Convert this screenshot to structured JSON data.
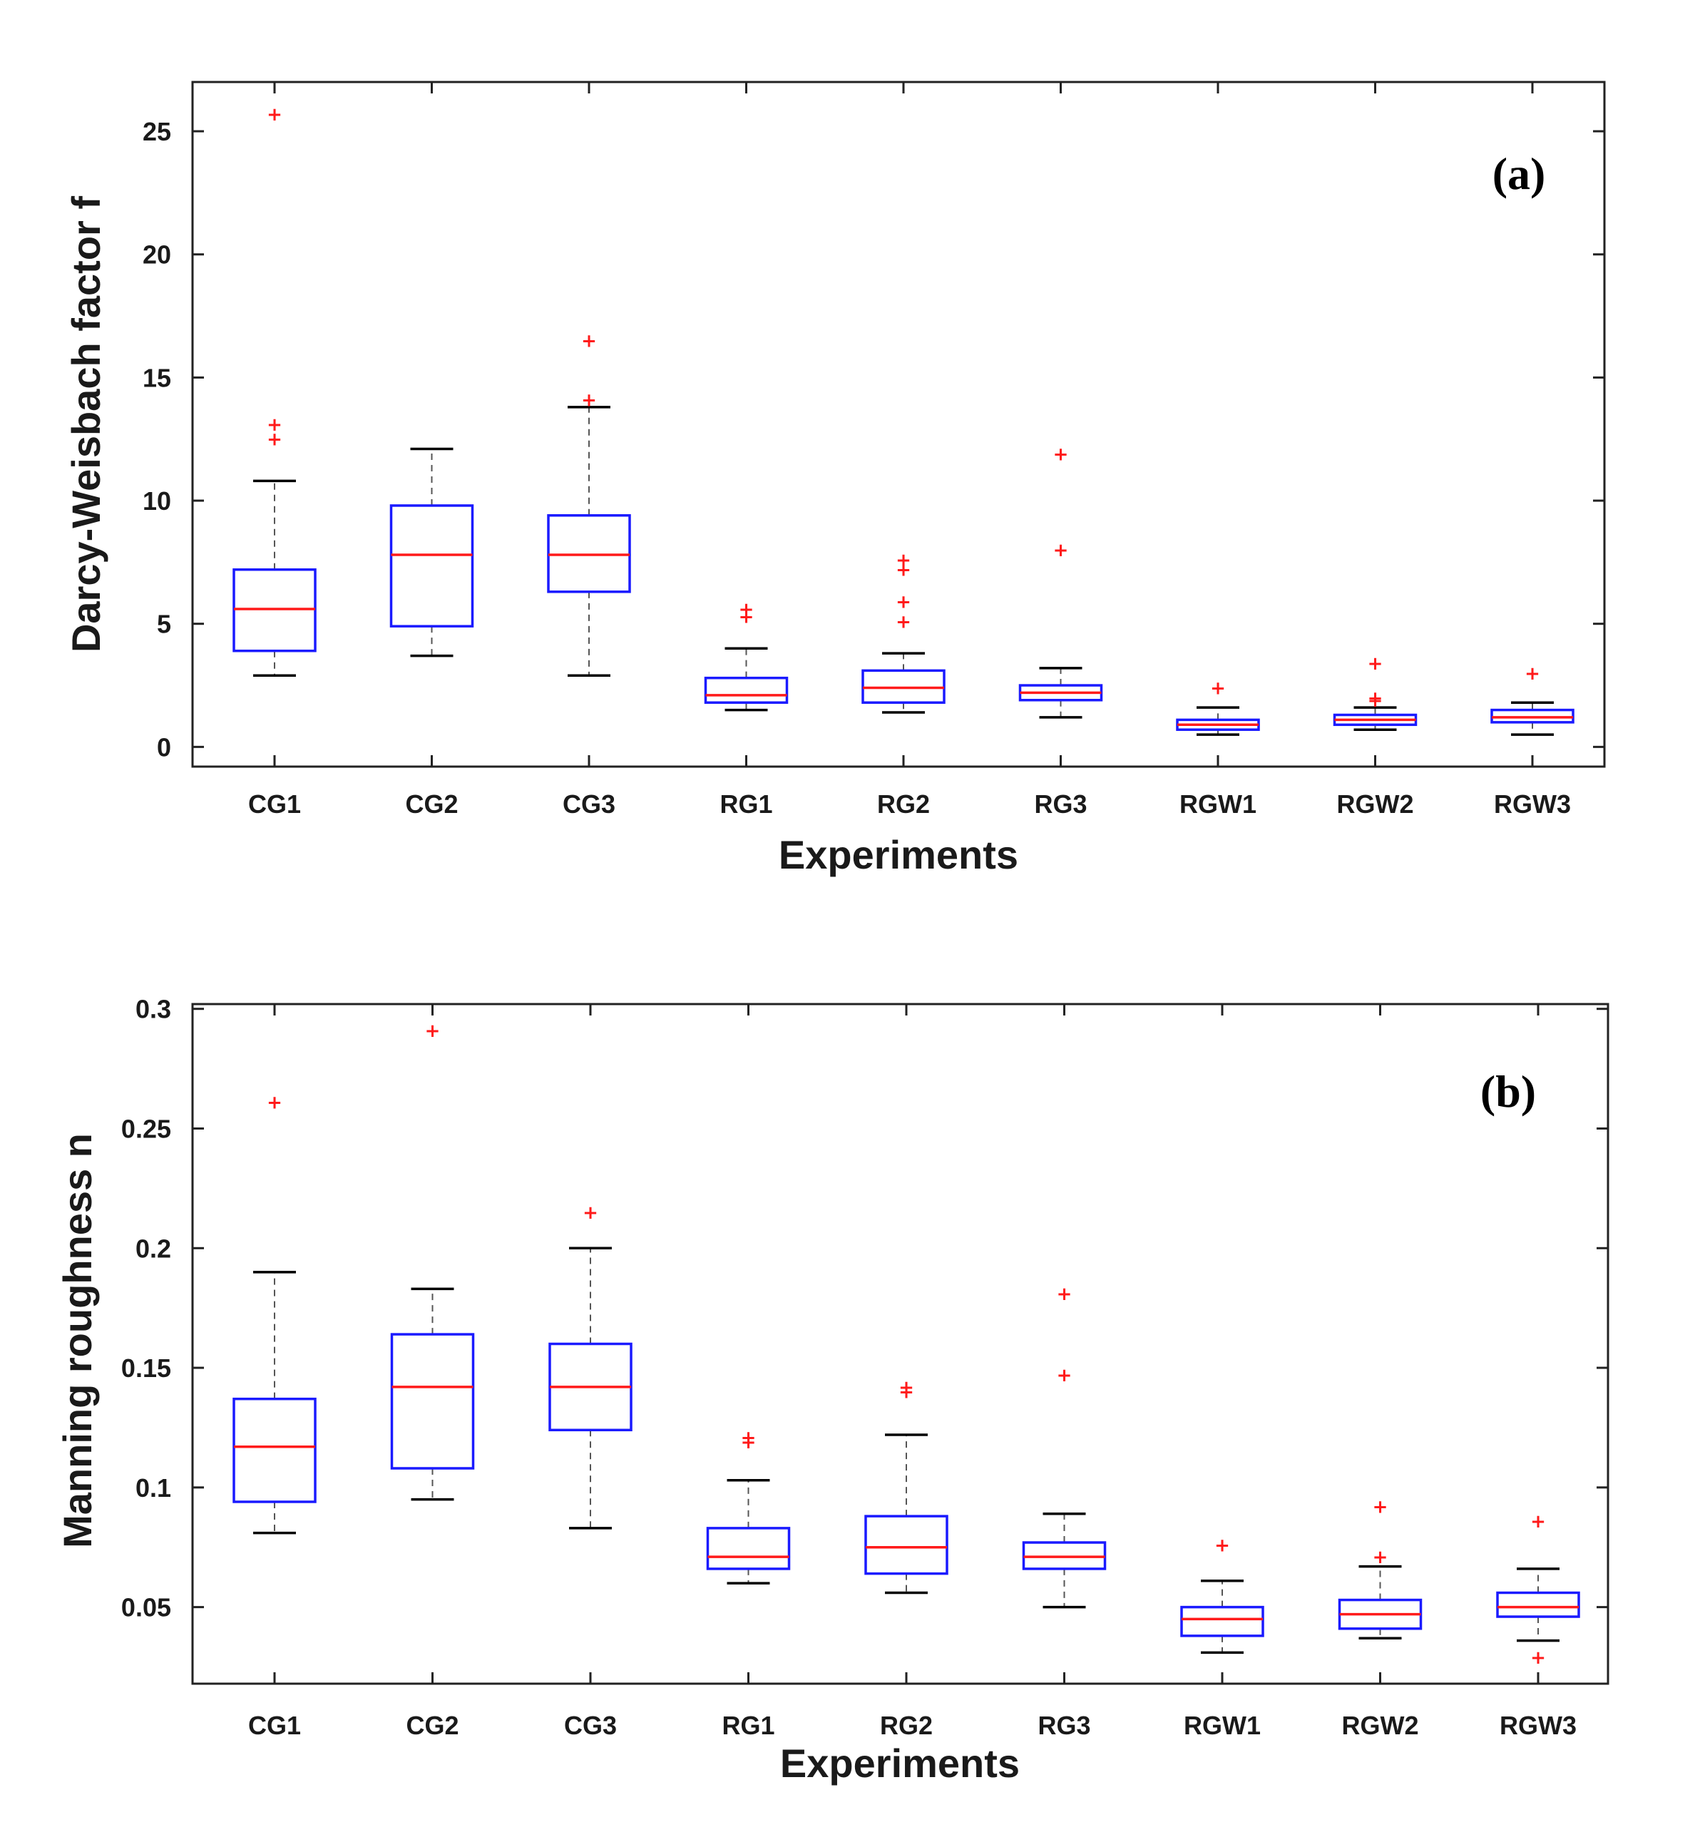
{
  "figure": {
    "background": "#ffffff"
  },
  "colors": {
    "box": "#1a1aff",
    "median": "#ff1a1a",
    "outlier": "#ff1a1a",
    "whisker": "#555555",
    "cap": "#000000"
  },
  "chart_data": [
    {
      "type": "boxplot",
      "panel_label": "(a)",
      "xlabel": "Experiments",
      "ylabel": "Darcy-Weisbach factor f",
      "ylim": [
        -0.8,
        27.0
      ],
      "yticks": [
        0,
        5,
        10,
        15,
        20,
        25
      ],
      "ytick_labels": [
        "0",
        "5",
        "10",
        "15",
        "20",
        "25"
      ],
      "categories": [
        "CG1",
        "CG2",
        "CG3",
        "RG1",
        "RG2",
        "RG3",
        "RGW1",
        "RGW2",
        "RGW3"
      ],
      "boxes": [
        {
          "name": "CG1",
          "whisker_low": 2.9,
          "q1": 3.9,
          "median": 5.6,
          "q3": 7.2,
          "whisker_high": 10.8,
          "outliers": [
            12.5,
            13.1,
            25.7
          ]
        },
        {
          "name": "CG2",
          "whisker_low": 3.7,
          "q1": 4.9,
          "median": 7.8,
          "q3": 9.8,
          "whisker_high": 12.1,
          "outliers": []
        },
        {
          "name": "CG3",
          "whisker_low": 2.9,
          "q1": 6.3,
          "median": 7.8,
          "q3": 9.4,
          "whisker_high": 13.8,
          "outliers": [
            14.1,
            16.5
          ]
        },
        {
          "name": "RG1",
          "whisker_low": 1.5,
          "q1": 1.8,
          "median": 2.1,
          "q3": 2.8,
          "whisker_high": 4.0,
          "outliers": [
            5.3,
            5.6
          ]
        },
        {
          "name": "RG2",
          "whisker_low": 1.4,
          "q1": 1.8,
          "median": 2.4,
          "q3": 3.1,
          "whisker_high": 3.8,
          "outliers": [
            5.1,
            5.9,
            7.2,
            7.6
          ]
        },
        {
          "name": "RG3",
          "whisker_low": 1.2,
          "q1": 1.9,
          "median": 2.2,
          "q3": 2.5,
          "whisker_high": 3.2,
          "outliers": [
            8.0,
            11.9
          ]
        },
        {
          "name": "RGW1",
          "whisker_low": 0.5,
          "q1": 0.7,
          "median": 0.9,
          "q3": 1.1,
          "whisker_high": 1.6,
          "outliers": [
            2.4
          ]
        },
        {
          "name": "RGW2",
          "whisker_low": 0.7,
          "q1": 0.9,
          "median": 1.1,
          "q3": 1.3,
          "whisker_high": 1.6,
          "outliers": [
            1.9,
            2.0,
            3.4
          ]
        },
        {
          "name": "RGW3",
          "whisker_low": 0.5,
          "q1": 1.0,
          "median": 1.2,
          "q3": 1.5,
          "whisker_high": 1.8,
          "outliers": [
            3.0
          ]
        }
      ]
    },
    {
      "type": "boxplot",
      "panel_label": "(b)",
      "xlabel": "Experiments",
      "ylabel": "Manning roughness  n",
      "ylim": [
        0.018,
        0.302
      ],
      "yticks": [
        0.05,
        0.1,
        0.15,
        0.2,
        0.25,
        0.3
      ],
      "ytick_labels": [
        "0.05",
        "0.1",
        "0.15",
        "0.2",
        "0.25",
        "0.3"
      ],
      "categories": [
        "CG1",
        "CG2",
        "CG3",
        "RG1",
        "RG2",
        "RG3",
        "RGW1",
        "RGW2",
        "RGW3"
      ],
      "boxes": [
        {
          "name": "CG1",
          "whisker_low": 0.081,
          "q1": 0.094,
          "median": 0.117,
          "q3": 0.137,
          "whisker_high": 0.19,
          "outliers": [
            0.261
          ]
        },
        {
          "name": "CG2",
          "whisker_low": 0.095,
          "q1": 0.108,
          "median": 0.142,
          "q3": 0.164,
          "whisker_high": 0.183,
          "outliers": [
            0.291
          ]
        },
        {
          "name": "CG3",
          "whisker_low": 0.083,
          "q1": 0.124,
          "median": 0.142,
          "q3": 0.16,
          "whisker_high": 0.2,
          "outliers": [
            0.215
          ]
        },
        {
          "name": "RG1",
          "whisker_low": 0.06,
          "q1": 0.066,
          "median": 0.071,
          "q3": 0.083,
          "whisker_high": 0.103,
          "outliers": [
            0.119,
            0.121
          ]
        },
        {
          "name": "RG2",
          "whisker_low": 0.056,
          "q1": 0.064,
          "median": 0.075,
          "q3": 0.088,
          "whisker_high": 0.122,
          "outliers": [
            0.14,
            0.142
          ]
        },
        {
          "name": "RG3",
          "whisker_low": 0.05,
          "q1": 0.066,
          "median": 0.071,
          "q3": 0.077,
          "whisker_high": 0.089,
          "outliers": [
            0.147,
            0.181
          ]
        },
        {
          "name": "RGW1",
          "whisker_low": 0.031,
          "q1": 0.038,
          "median": 0.045,
          "q3": 0.05,
          "whisker_high": 0.061,
          "outliers": [
            0.076
          ]
        },
        {
          "name": "RGW2",
          "whisker_low": 0.037,
          "q1": 0.041,
          "median": 0.047,
          "q3": 0.053,
          "whisker_high": 0.067,
          "outliers": [
            0.071,
            0.092
          ]
        },
        {
          "name": "RGW3",
          "whisker_low": 0.036,
          "q1": 0.046,
          "median": 0.05,
          "q3": 0.056,
          "whisker_high": 0.066,
          "outliers": [
            0.029,
            0.086
          ]
        }
      ]
    }
  ]
}
